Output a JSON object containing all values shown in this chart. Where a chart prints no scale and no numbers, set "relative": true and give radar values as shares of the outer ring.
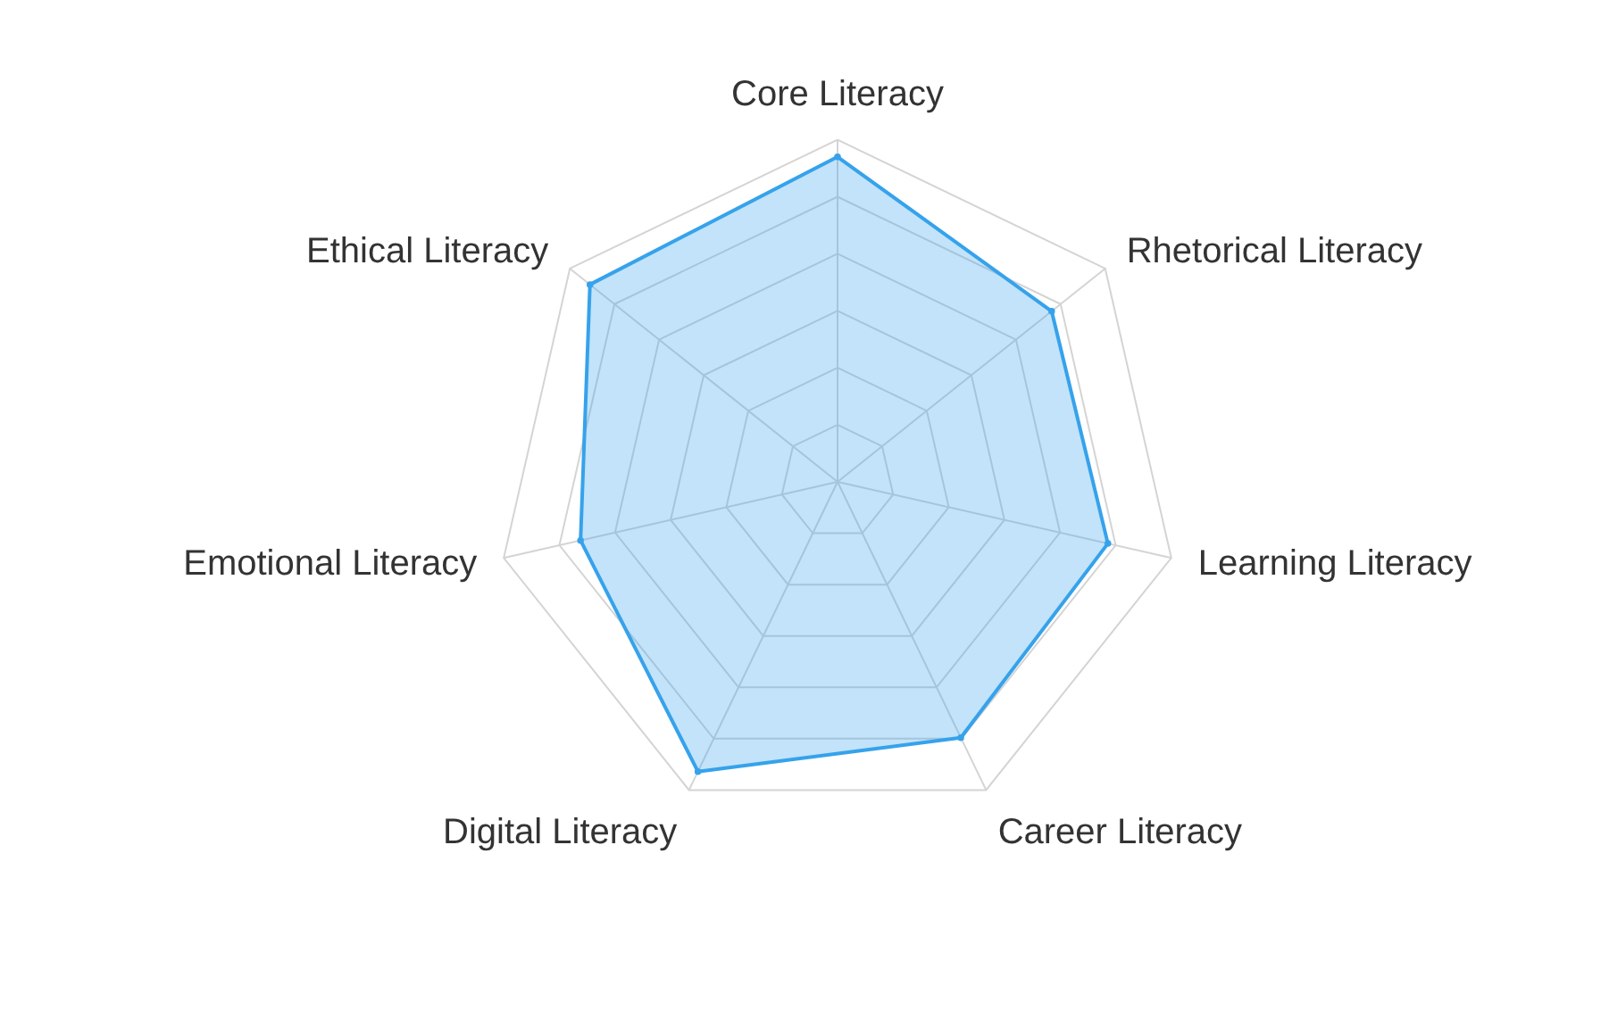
{
  "chart_data": {
    "type": "radar",
    "relative": true,
    "categories": [
      "Core Literacy",
      "Rhetorical Literacy",
      "Learning Literacy",
      "Career Literacy",
      "Digital Literacy",
      "Emotional Literacy",
      "Ethical Literacy"
    ],
    "series": [
      {
        "color": "#36a2eb",
        "values": [
          0.95,
          0.8,
          0.81,
          0.83,
          0.94,
          0.77,
          0.925
        ]
      }
    ],
    "grid": true,
    "marker": "circle"
  }
}
